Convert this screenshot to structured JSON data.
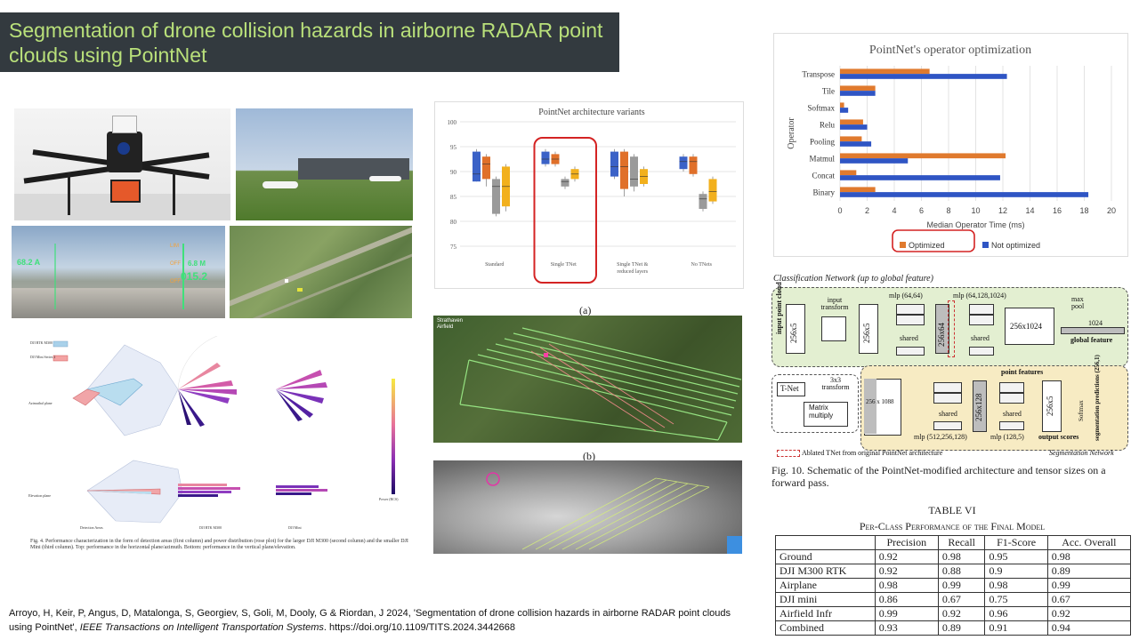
{
  "slide": {
    "title": "Segmentation of drone collision hazards in airborne RADAR point clouds using PointNet",
    "citation_prefix": "Arroyo, H, Keir, P, Angus, D, Matalonga, S, Georgiev, S, Goli, M, Dooly, G & Riordan, J 2024, 'Segmentation of drone collision hazards in airborne RADAR point clouds using PointNet', ",
    "citation_journal": "IEEE Transactions on Intelligent Transportation Systems",
    "citation_suffix": ". https://doi.org/10.1109/TITS.2024.3442668"
  },
  "fig4": {
    "legend_a": "DJI RTK M300",
    "legend_b": "DJI Mini Series 2",
    "row1": "Azimuthal plane",
    "row2": "Elevation plane",
    "col1": "Detection Areas",
    "col2": "DJI RTK M300",
    "col3": "DJI Mini",
    "colorbar": "Power (RCS)",
    "caption": "Fig. 4.   Performance characterization in the form of detection areas (first column) and power distribution (rose plot) for the larger DJI M300 (second column) and the smaller DJI Mini (third column). Top: performance in the horizontal plane/azimuth. Bottom: performance in the vertical plane/elevation."
  },
  "hud": {
    "left_top": "LIM",
    "v1": "68.2 A",
    "v2": "6.8 M",
    "v3": "015.2",
    "v4": "OFF",
    "v5": "OFF"
  },
  "flight": {
    "label_a": "(a)",
    "label_b": "(b)",
    "location": "Strathaven Airfield"
  },
  "fig10": {
    "class_title": "Classification Network (up to global feature)",
    "input_cloud": "input point cloud",
    "input_transform": "input transform",
    "n256x5": "256x5",
    "mlp1": "mlp (64,64)",
    "n256x64": "256x64",
    "mlp2": "mlp (64,128,1024)",
    "n256x1024": "256x1024",
    "maxpool": "max pool",
    "n1024": "1024",
    "global_feature": "global feature",
    "shared": "shared",
    "tnet": "T-Net",
    "transform3": "3x3 transform",
    "matmul": "Matrix multiply",
    "point_features": "point features",
    "n256x1088": "256 x 1088",
    "n256x128": "256x128",
    "n256x5b": "256x5",
    "softmax": "Softmax",
    "seg_pred": "segmentation predictions (256,1)",
    "mlp3": "mlp (512,256,128)",
    "mlp4": "mlp (128,5)",
    "output_scores": "output scores",
    "ablated": "Ablated TNet from original PointNet architecture",
    "seg_network": "Segmentation Network",
    "caption": "Fig. 10.   Schematic of the PointNet-modified architecture and tensor sizes on a forward pass."
  },
  "table": {
    "title": "TABLE VI",
    "subtitle": "Per-Class Performance of the Final Model",
    "headers": [
      "",
      "Precision",
      "Recall",
      "F1-Score",
      "Acc. Overall"
    ],
    "rows": [
      [
        "Ground",
        "0.92",
        "0.98",
        "0.95",
        "0.98"
      ],
      [
        "DJI M300 RTK",
        "0.92",
        "0.88",
        "0.9",
        "0.89"
      ],
      [
        "Airplane",
        "0.98",
        "0.99",
        "0.98",
        "0.99"
      ],
      [
        "DJI mini",
        "0.86",
        "0.67",
        "0.75",
        "0.67"
      ],
      [
        "Airfield Infr",
        "0.99",
        "0.92",
        "0.96",
        "0.92"
      ],
      [
        "Combined",
        "0.93",
        "0.89",
        "0.91",
        "0.94"
      ]
    ]
  },
  "chart_data": [
    {
      "type": "bar",
      "orientation": "horizontal",
      "title": "PointNet's operator optimization",
      "xlabel": "Median Operator Time (ms)",
      "ylabel": "Operator",
      "categories": [
        "Transpose",
        "Tile",
        "Softmax",
        "Relu",
        "Pooling",
        "Matmul",
        "Concat",
        "Binary"
      ],
      "series": [
        {
          "name": "Optimized",
          "color": "#e07a2e",
          "values": [
            6.6,
            2.6,
            0.3,
            1.7,
            1.6,
            12.2,
            1.2,
            2.6
          ]
        },
        {
          "name": "Not optimized",
          "color": "#2f55c4",
          "values": [
            12.3,
            2.6,
            0.6,
            2.0,
            2.3,
            5.0,
            11.8,
            18.3
          ]
        }
      ],
      "xlim": [
        0,
        20
      ],
      "xticks": [
        0,
        2,
        4,
        6,
        8,
        10,
        12,
        14,
        16,
        18,
        20
      ],
      "legend": "bottom",
      "grid": true
    },
    {
      "type": "box",
      "title": "PointNet architecture variants",
      "categories": [
        "Standard",
        "Single TNet",
        "Single TNet & reduced layers",
        "No TNets"
      ],
      "ylim": [
        75,
        100
      ],
      "yticks": [
        75,
        80,
        85,
        90,
        95,
        100
      ],
      "colors": [
        "#3b62c7",
        "#e0702a",
        "#9a9a9a",
        "#f2b01d"
      ],
      "boxes": [
        [
          [
            88,
            89.5,
            94,
            88
          ],
          [
            88.5,
            91.5,
            93,
            87
          ],
          [
            81.5,
            87,
            88.5,
            81
          ],
          [
            83,
            87,
            91,
            82
          ]
        ],
        [
          [
            91.5,
            92.5,
            94,
            91
          ],
          [
            91.5,
            92.5,
            93.5,
            91
          ],
          [
            87,
            88,
            88.5,
            86.5
          ],
          [
            88.5,
            89.5,
            90.5,
            88
          ]
        ],
        [
          [
            89,
            91,
            94,
            88.5
          ],
          [
            86.5,
            91,
            94,
            85
          ],
          [
            87,
            88.5,
            93,
            86
          ],
          [
            87.5,
            89,
            90.5,
            87
          ]
        ],
        [
          [
            90.5,
            92,
            93,
            90
          ],
          [
            89.5,
            92,
            93,
            89
          ],
          [
            82.5,
            84.5,
            85.5,
            82
          ],
          [
            84,
            86,
            88.5,
            83.5
          ]
        ]
      ]
    }
  ]
}
